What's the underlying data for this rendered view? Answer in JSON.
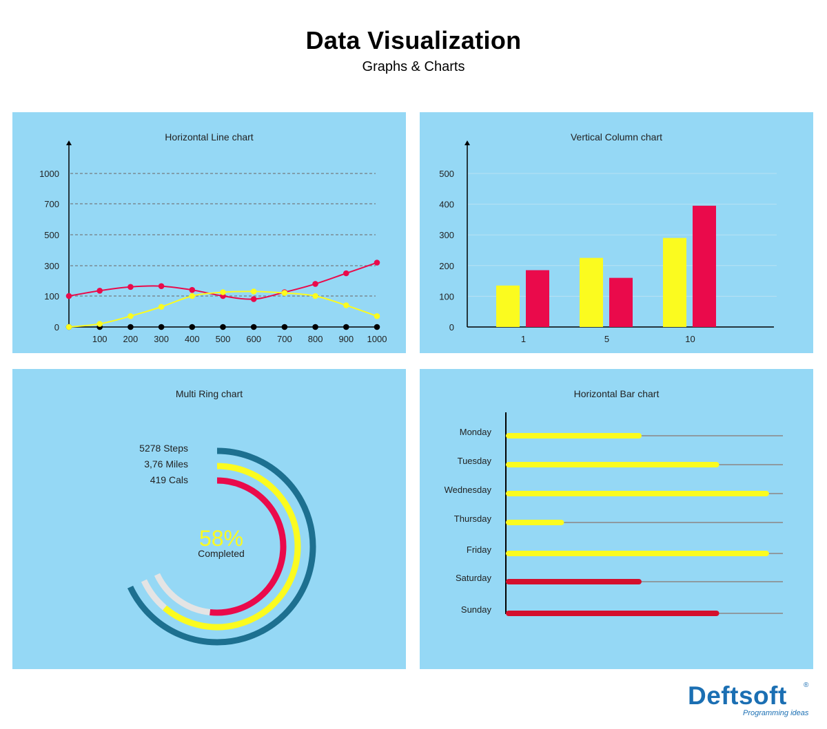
{
  "header": {
    "title": "Data Visualization",
    "subtitle": "Graphs & Charts"
  },
  "colors": {
    "panel_bg": "#95d8f5",
    "yellow": "#fbfb1f",
    "red": "#ea0a4b",
    "dark_red": "#d40f2c",
    "teal": "#1d7090",
    "light_gray": "#e4e4e4",
    "brand_blue": "#1b6fb3"
  },
  "chart_data": [
    {
      "type": "line",
      "title": "Horizontal Line chart",
      "x_ticks": [
        "100",
        "200",
        "300",
        "400",
        "500",
        "600",
        "700",
        "800",
        "900",
        "1000"
      ],
      "y_ticks": [
        "0",
        "100",
        "300",
        "500",
        "700",
        "1000"
      ],
      "x": [
        0,
        100,
        200,
        300,
        400,
        500,
        600,
        700,
        800,
        900,
        1000
      ],
      "series": [
        {
          "color": "#ea0a4b",
          "values": [
            100,
            135,
            160,
            165,
            140,
            100,
            90,
            125,
            180,
            250,
            320
          ]
        },
        {
          "color": "#fbfb1f",
          "values": [
            0,
            10,
            35,
            65,
            100,
            125,
            130,
            120,
            100,
            70,
            35
          ]
        }
      ],
      "grid": "dashed"
    },
    {
      "type": "bar",
      "title": "Vertical Column chart",
      "categories": [
        "1",
        "5",
        "10"
      ],
      "y_ticks": [
        "0",
        "100",
        "200",
        "300",
        "400",
        "500"
      ],
      "series": [
        {
          "color": "#fbfb1f",
          "values": [
            135,
            225,
            290
          ]
        },
        {
          "color": "#ea0a4b",
          "values": [
            185,
            160,
            395
          ]
        }
      ],
      "ylim": [
        0,
        500
      ]
    },
    {
      "type": "pie",
      "subtype": "multi-ring",
      "title": "Multi Ring chart",
      "center_value": "58%",
      "center_label": "Completed",
      "rings": [
        {
          "label": "5278 Steps",
          "color": "#1d7090",
          "fraction": 1.0
        },
        {
          "label": "3,76 Miles",
          "color": "#fbfb1f",
          "fraction": 0.9
        },
        {
          "label": "419 Cals",
          "color": "#ea0a4b",
          "fraction": 0.76
        }
      ]
    },
    {
      "type": "bar",
      "orientation": "horizontal",
      "title": "Horizontal Bar chart",
      "categories": [
        "Monday",
        "Tuesday",
        "Wednesday",
        "Thursday",
        "Friday",
        "Saturday",
        "Sunday"
      ],
      "values": [
        0.48,
        0.76,
        0.94,
        0.2,
        0.94,
        0.48,
        0.76
      ],
      "colors": [
        "#fbfb1f",
        "#fbfb1f",
        "#fbfb1f",
        "#fbfb1f",
        "#fbfb1f",
        "#d40f2c",
        "#d40f2c"
      ]
    }
  ],
  "logo": {
    "name": "Deftsoft",
    "tagline": "Programming ideas",
    "registered": "®"
  }
}
